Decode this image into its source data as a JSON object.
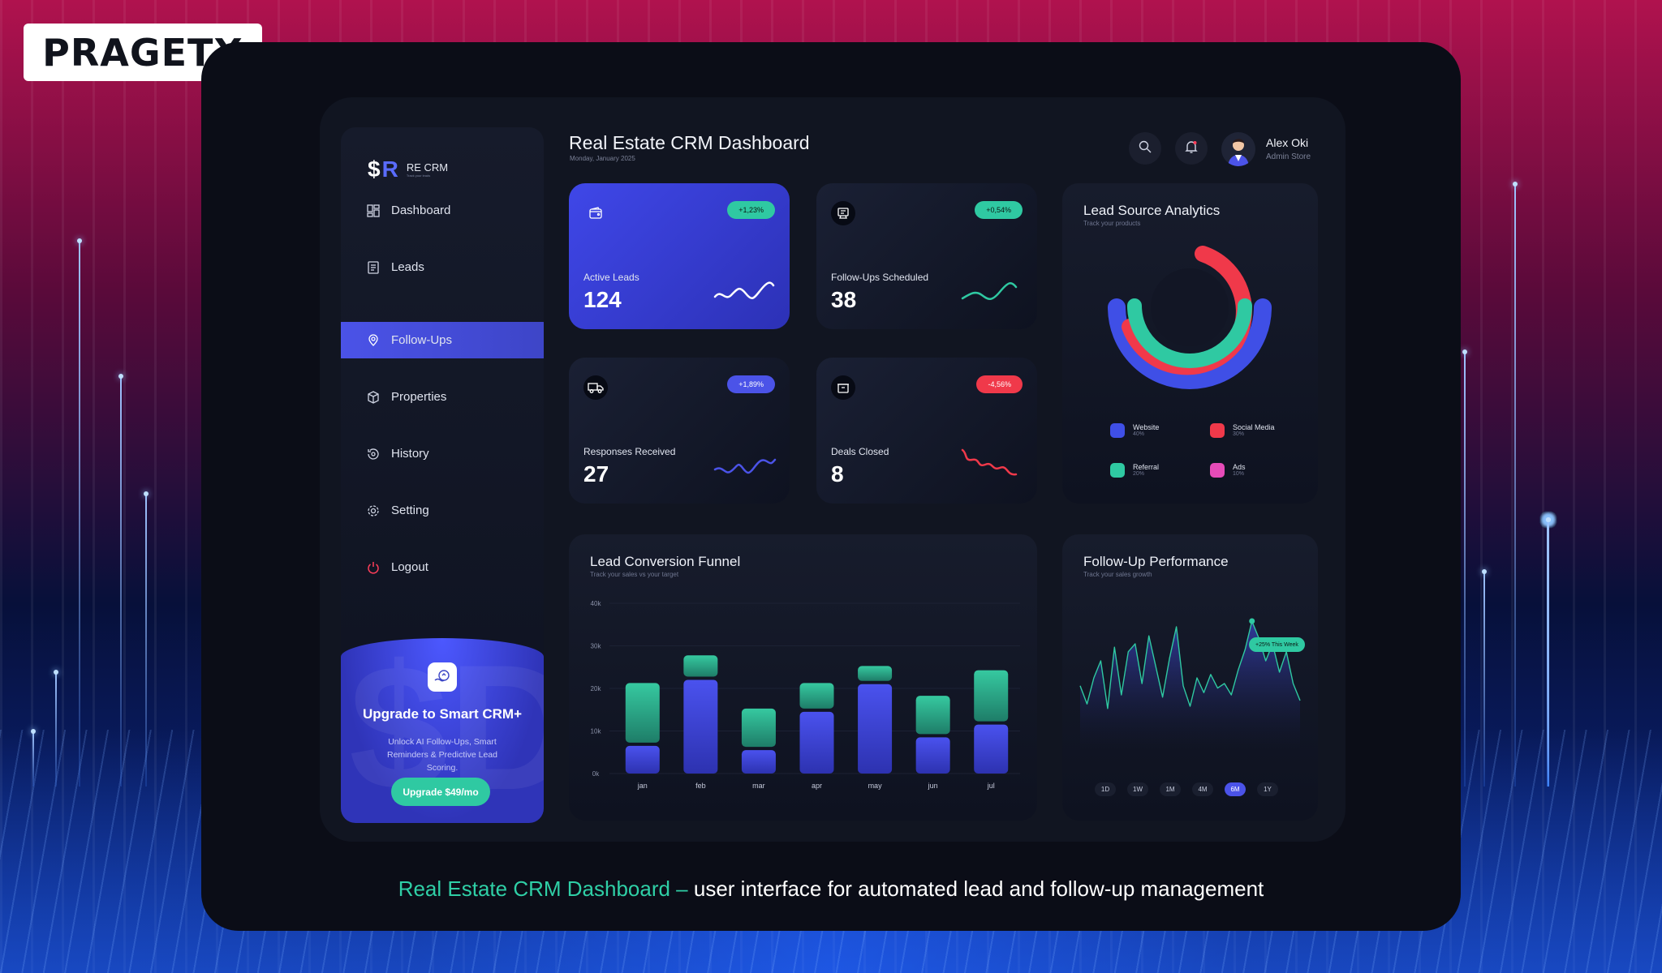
{
  "brand": {
    "logo_text": "PRAGETX"
  },
  "caption": {
    "highlight": "Real Estate CRM Dashboard –",
    "rest": " user interface for automated lead and follow-up management"
  },
  "app": {
    "logo_mark": "$R",
    "name": "RE CRM",
    "tagline": "Track your leads"
  },
  "sidebar": {
    "items": [
      {
        "label": "Dashboard",
        "icon": "dashboard-icon"
      },
      {
        "label": "Leads",
        "icon": "leads-icon"
      },
      {
        "label": "Follow-Ups",
        "icon": "location-pin-icon",
        "active": true
      },
      {
        "label": "Properties",
        "icon": "cube-icon"
      },
      {
        "label": "History",
        "icon": "history-icon"
      },
      {
        "label": "Setting",
        "icon": "gear-icon"
      },
      {
        "label": "Logout",
        "icon": "power-icon"
      }
    ],
    "upgrade": {
      "title": "Upgrade to Smart CRM+",
      "desc": "Unlock AI Follow-Ups, Smart Reminders & Predictive Lead Scoring.",
      "button": "Upgrade $49/mo"
    }
  },
  "header": {
    "title": "Real Estate CRM Dashboard",
    "date": "Monday, January 2025",
    "user": {
      "name": "Alex Oki",
      "role": "Admin Store"
    }
  },
  "stats": [
    {
      "label": "Active Leads",
      "value": "124",
      "change": "+1,23%",
      "icon": "wallet-icon",
      "trend": "up"
    },
    {
      "label": "Follow-Ups Scheduled",
      "value": "38",
      "change": "+0,54%",
      "icon": "receipt-icon",
      "trend": "up"
    },
    {
      "label": "Responses Received",
      "value": "27",
      "change": "+1,89%",
      "icon": "truck-icon",
      "trend": "up"
    },
    {
      "label": "Deals Closed",
      "value": "8",
      "change": "-4,56%",
      "icon": "box-icon",
      "trend": "down"
    }
  ],
  "lead_source": {
    "title": "Lead Source Analytics",
    "subtitle": "Track your products",
    "legend": [
      {
        "name": "Website",
        "pct": "40%",
        "color": "#3f4fe6"
      },
      {
        "name": "Social Media",
        "pct": "30%",
        "color": "#f0394a"
      },
      {
        "name": "Referral",
        "pct": "20%",
        "color": "#2fc9a2"
      },
      {
        "name": "Ads",
        "pct": "10%",
        "color": "#e64bb8"
      }
    ]
  },
  "funnel": {
    "title": "Lead Conversion Funnel",
    "subtitle": "Track your sales vs your target"
  },
  "performance": {
    "title": "Follow-Up Performance",
    "subtitle": "Track your sales growth",
    "callout": "+25% This Week",
    "tabs": [
      "1D",
      "1W",
      "1M",
      "4M",
      "6M",
      "1Y"
    ],
    "active_tab": "6M"
  },
  "chart_data": [
    {
      "type": "bar",
      "title": "Lead Conversion Funnel",
      "categories": [
        "jan",
        "feb",
        "mar",
        "apr",
        "may",
        "jun",
        "jul"
      ],
      "ylim": [
        0,
        40000
      ],
      "yticks": [
        "0k",
        "10k",
        "20k",
        "30k",
        "40k"
      ],
      "series": [
        {
          "values": [
            6500,
            22000,
            5500,
            14500,
            21000,
            8500,
            11500
          ],
          "color": "#3f47e0"
        },
        {
          "values": [
            14000,
            5000,
            9000,
            6000,
            3500,
            9000,
            12000
          ],
          "color": "#2fb592"
        }
      ]
    },
    {
      "type": "pie",
      "title": "Lead Source Analytics",
      "categories": [
        "Website",
        "Social Media",
        "Referral",
        "Ads"
      ],
      "values": [
        40,
        30,
        20,
        10
      ]
    },
    {
      "type": "area",
      "title": "Follow-Up Performance",
      "values": [
        38,
        22,
        45,
        60,
        18,
        72,
        30,
        68,
        75,
        40,
        82,
        55,
        28,
        62,
        90,
        38,
        20,
        45,
        32,
        48,
        36,
        40,
        30,
        52,
        70,
        95,
        80,
        60,
        75,
        50,
        68,
        40,
        25
      ]
    }
  ]
}
